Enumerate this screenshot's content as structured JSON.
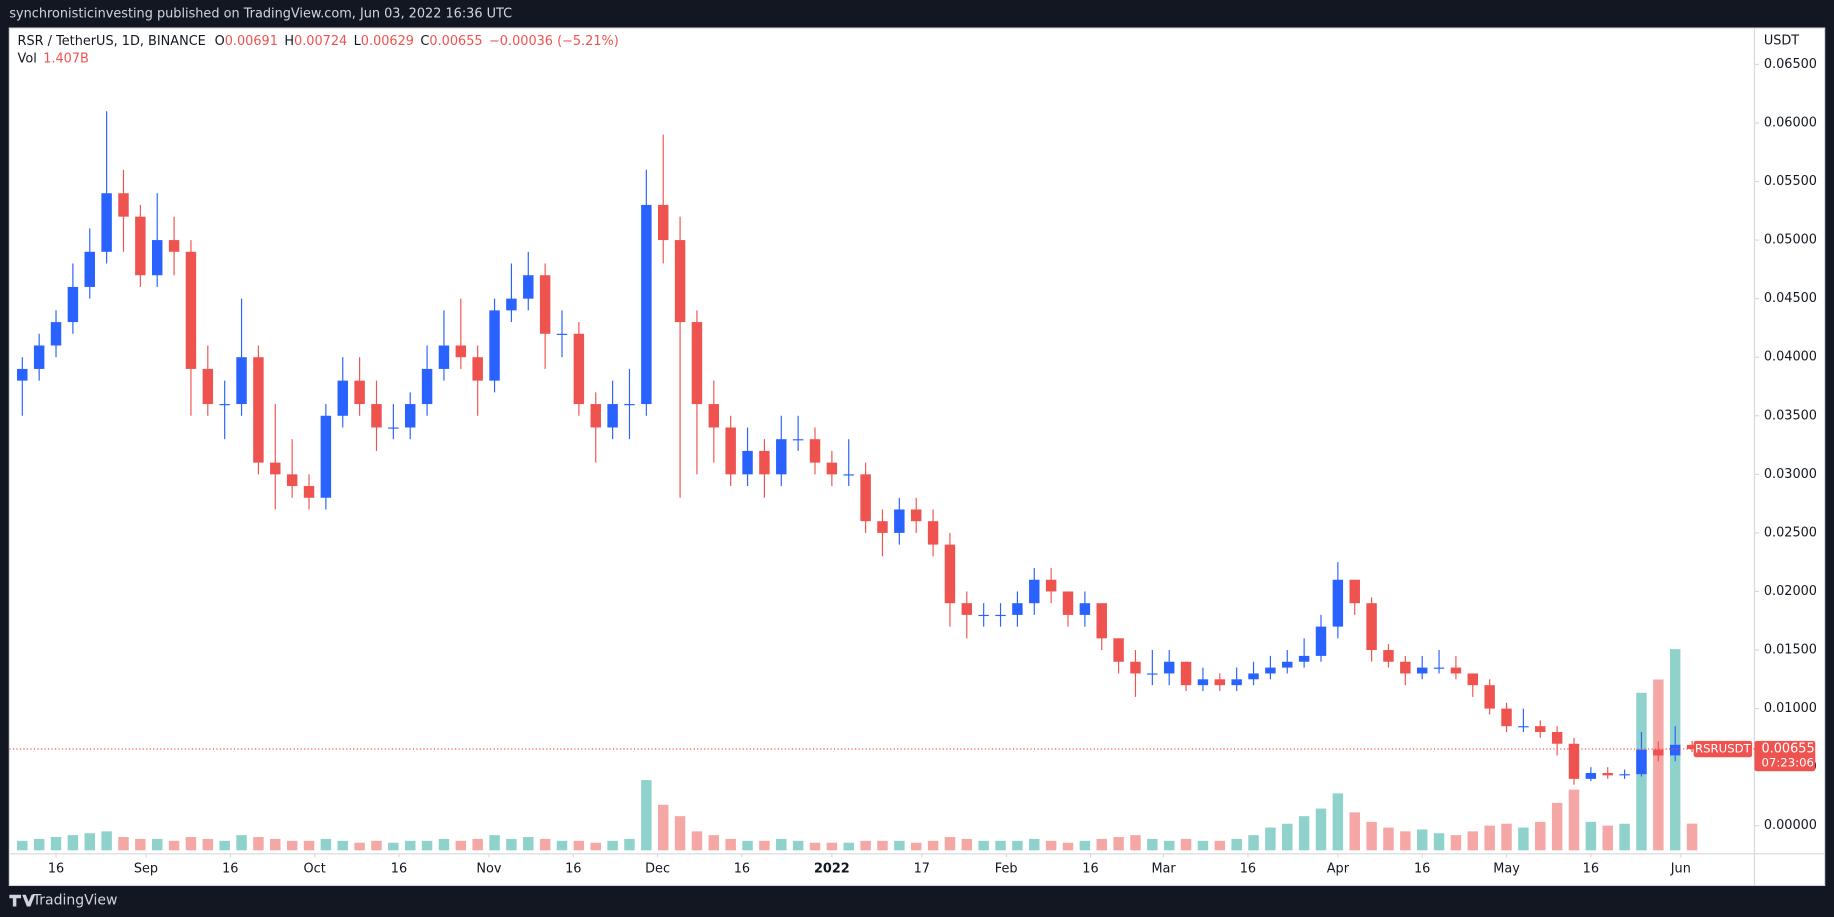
{
  "header": "synchronisticinvesting published on TradingView.com, Jun 03, 2022 16:36 UTC",
  "footer": "TradingView",
  "chart_data": {
    "type": "candlestick",
    "symbol": "RSR / TetherUS, 1D, BINANCE",
    "legend_keys": [
      "O",
      "H",
      "L",
      "C"
    ],
    "change": "−0.00036 (−5.21%)",
    "volume_name": "Vol",
    "last_volume_label": "1.407B",
    "price_tag_name": "RSRUSDT",
    "countdown": "07:23:06",
    "y_unit": "USDT",
    "up_color": "#2962ff",
    "down_color": "#ef5350",
    "volume_up_color": "#8fd1cb",
    "volume_down_color": "#f5a7a5",
    "xlim": [
      6.7,
      317.1
    ],
    "xticks": [
      {
        "value": 15,
        "label": "16"
      },
      {
        "value": 31,
        "label": "Sep"
      },
      {
        "value": 46,
        "label": "16"
      },
      {
        "value": 61,
        "label": "Oct"
      },
      {
        "value": 76,
        "label": "16"
      },
      {
        "value": 92,
        "label": "Nov"
      },
      {
        "value": 107,
        "label": "16"
      },
      {
        "value": 122,
        "label": "Dec"
      },
      {
        "value": 137,
        "label": "16"
      },
      {
        "value": 153,
        "label": "2022"
      },
      {
        "value": 169,
        "label": "17"
      },
      {
        "value": 184,
        "label": "Feb"
      },
      {
        "value": 199,
        "label": "16"
      },
      {
        "value": 212,
        "label": "Mar"
      },
      {
        "value": 227,
        "label": "16"
      },
      {
        "value": 243,
        "label": "Apr"
      },
      {
        "value": 258,
        "label": "16"
      },
      {
        "value": 273,
        "label": "May"
      },
      {
        "value": 288,
        "label": "16"
      },
      {
        "value": 304,
        "label": "Jun"
      }
    ],
    "ylim": [
      -0.0024,
      0.0681
    ],
    "yticks": [
      {
        "value": 0,
        "label": "0.00000"
      },
      {
        "value": 0.005,
        "label": "0.00500"
      },
      {
        "value": 0.01,
        "label": "0.01000"
      },
      {
        "value": 0.015,
        "label": "0.01500"
      },
      {
        "value": 0.02,
        "label": "0.02000"
      },
      {
        "value": 0.025,
        "label": "0.02500"
      },
      {
        "value": 0.03,
        "label": "0.03000"
      },
      {
        "value": 0.035,
        "label": "0.03500"
      },
      {
        "value": 0.04,
        "label": "0.04000"
      },
      {
        "value": 0.045,
        "label": "0.04500"
      },
      {
        "value": 0.05,
        "label": "0.05000"
      },
      {
        "value": 0.055,
        "label": "0.05500"
      },
      {
        "value": 0.06,
        "label": "0.06000"
      },
      {
        "value": 0.065,
        "label": "0.06500"
      }
    ],
    "x": [
      9,
      12,
      15,
      18,
      21,
      24,
      27,
      30,
      33,
      36,
      39,
      42,
      45,
      48,
      51,
      54,
      57,
      60,
      63,
      66,
      69,
      72,
      75,
      78,
      81,
      84,
      87,
      90,
      93,
      96,
      99,
      102,
      105,
      108,
      111,
      114,
      117,
      120,
      123,
      126,
      129,
      132,
      135,
      138,
      141,
      144,
      147,
      150,
      153,
      156,
      159,
      162,
      165,
      168,
      171,
      174,
      177,
      180,
      183,
      186,
      189,
      192,
      195,
      198,
      201,
      204,
      207,
      210,
      213,
      216,
      219,
      222,
      225,
      228,
      231,
      234,
      237,
      240,
      243,
      246,
      249,
      252,
      255,
      258,
      261,
      264,
      267,
      270,
      273,
      276,
      279,
      282,
      285,
      288,
      291,
      294,
      297,
      300,
      303,
      306
    ],
    "open": [
      0.038,
      0.039,
      0.041,
      0.043,
      0.046,
      0.049,
      0.054,
      0.052,
      0.047,
      0.05,
      0.049,
      0.039,
      0.036,
      0.036,
      0.04,
      0.031,
      0.03,
      0.029,
      0.028,
      0.035,
      0.038,
      0.036,
      0.034,
      0.034,
      0.036,
      0.039,
      0.041,
      0.04,
      0.038,
      0.044,
      0.045,
      0.047,
      0.042,
      0.042,
      0.036,
      0.034,
      0.036,
      0.036,
      0.053,
      0.05,
      0.043,
      0.036,
      0.034,
      0.03,
      0.032,
      0.03,
      0.033,
      0.033,
      0.031,
      0.03,
      0.03,
      0.026,
      0.025,
      0.027,
      0.026,
      0.024,
      0.019,
      0.018,
      0.018,
      0.018,
      0.019,
      0.021,
      0.02,
      0.018,
      0.019,
      0.016,
      0.014,
      0.013,
      0.013,
      0.014,
      0.012,
      0.0125,
      0.012,
      0.0125,
      0.013,
      0.0135,
      0.014,
      0.0145,
      0.017,
      0.021,
      0.019,
      0.015,
      0.014,
      0.013,
      0.0135,
      0.0135,
      0.013,
      0.012,
      0.01,
      0.0085,
      0.0085,
      0.008,
      0.007,
      0.004,
      0.0045,
      0.0043,
      0.0044,
      0.0065,
      0.006,
      0.00691
    ],
    "high": [
      0.04,
      0.042,
      0.044,
      0.048,
      0.051,
      0.061,
      0.056,
      0.053,
      0.054,
      0.052,
      0.05,
      0.041,
      0.038,
      0.045,
      0.041,
      0.036,
      0.033,
      0.03,
      0.036,
      0.04,
      0.04,
      0.038,
      0.036,
      0.037,
      0.041,
      0.044,
      0.045,
      0.041,
      0.045,
      0.048,
      0.049,
      0.048,
      0.044,
      0.043,
      0.037,
      0.038,
      0.039,
      0.056,
      0.059,
      0.052,
      0.044,
      0.038,
      0.035,
      0.034,
      0.033,
      0.035,
      0.035,
      0.034,
      0.032,
      0.033,
      0.031,
      0.027,
      0.028,
      0.028,
      0.027,
      0.025,
      0.02,
      0.019,
      0.019,
      0.02,
      0.022,
      0.022,
      0.02,
      0.02,
      0.019,
      0.016,
      0.015,
      0.015,
      0.015,
      0.014,
      0.0135,
      0.013,
      0.0135,
      0.014,
      0.0145,
      0.015,
      0.016,
      0.018,
      0.0225,
      0.021,
      0.0195,
      0.0155,
      0.0145,
      0.0145,
      0.015,
      0.0145,
      0.013,
      0.0125,
      0.0105,
      0.01,
      0.009,
      0.0085,
      0.0075,
      0.005,
      0.005,
      0.0048,
      0.008,
      0.0072,
      0.0085,
      0.00724
    ],
    "low": [
      0.035,
      0.038,
      0.04,
      0.042,
      0.045,
      0.048,
      0.049,
      0.046,
      0.046,
      0.047,
      0.035,
      0.035,
      0.033,
      0.035,
      0.03,
      0.027,
      0.028,
      0.027,
      0.027,
      0.034,
      0.035,
      0.032,
      0.033,
      0.033,
      0.035,
      0.038,
      0.039,
      0.035,
      0.037,
      0.043,
      0.044,
      0.039,
      0.04,
      0.035,
      0.031,
      0.033,
      0.033,
      0.035,
      0.048,
      0.028,
      0.03,
      0.031,
      0.029,
      0.029,
      0.028,
      0.029,
      0.032,
      0.03,
      0.029,
      0.029,
      0.025,
      0.023,
      0.024,
      0.025,
      0.023,
      0.017,
      0.016,
      0.017,
      0.017,
      0.017,
      0.018,
      0.019,
      0.017,
      0.017,
      0.015,
      0.013,
      0.011,
      0.012,
      0.012,
      0.0115,
      0.0115,
      0.0115,
      0.0115,
      0.012,
      0.0125,
      0.013,
      0.0135,
      0.014,
      0.016,
      0.018,
      0.014,
      0.0135,
      0.012,
      0.0125,
      0.013,
      0.0125,
      0.011,
      0.0095,
      0.008,
      0.008,
      0.0075,
      0.006,
      0.0035,
      0.0038,
      0.004,
      0.004,
      0.0042,
      0.0055,
      0.0055,
      0.00629
    ],
    "close": [
      0.039,
      0.041,
      0.043,
      0.046,
      0.049,
      0.054,
      0.052,
      0.047,
      0.05,
      0.049,
      0.039,
      0.036,
      0.036,
      0.04,
      0.031,
      0.03,
      0.029,
      0.028,
      0.035,
      0.038,
      0.036,
      0.034,
      0.034,
      0.036,
      0.039,
      0.041,
      0.04,
      0.038,
      0.044,
      0.045,
      0.047,
      0.042,
      0.042,
      0.036,
      0.034,
      0.036,
      0.036,
      0.053,
      0.05,
      0.043,
      0.036,
      0.034,
      0.03,
      0.032,
      0.03,
      0.033,
      0.033,
      0.031,
      0.03,
      0.03,
      0.026,
      0.025,
      0.027,
      0.026,
      0.024,
      0.019,
      0.018,
      0.018,
      0.018,
      0.019,
      0.021,
      0.02,
      0.018,
      0.019,
      0.016,
      0.014,
      0.013,
      0.013,
      0.014,
      0.012,
      0.0125,
      0.012,
      0.0125,
      0.013,
      0.0135,
      0.014,
      0.0145,
      0.017,
      0.021,
      0.019,
      0.015,
      0.014,
      0.013,
      0.0135,
      0.0135,
      0.013,
      0.012,
      0.01,
      0.0085,
      0.0085,
      0.008,
      0.007,
      0.004,
      0.0045,
      0.0043,
      0.0044,
      0.0065,
      0.006,
      0.00691,
      0.00655
    ],
    "volume": [
      0.5,
      0.6,
      0.7,
      0.8,
      0.9,
      1.0,
      0.7,
      0.6,
      0.6,
      0.5,
      0.7,
      0.6,
      0.5,
      0.8,
      0.7,
      0.6,
      0.5,
      0.5,
      0.6,
      0.5,
      0.4,
      0.5,
      0.4,
      0.5,
      0.5,
      0.6,
      0.5,
      0.6,
      0.8,
      0.6,
      0.7,
      0.6,
      0.5,
      0.5,
      0.4,
      0.5,
      0.6,
      3.7,
      2.4,
      1.8,
      1.0,
      0.8,
      0.6,
      0.5,
      0.5,
      0.6,
      0.5,
      0.4,
      0.4,
      0.4,
      0.5,
      0.5,
      0.5,
      0.4,
      0.5,
      0.7,
      0.6,
      0.5,
      0.5,
      0.5,
      0.6,
      0.5,
      0.4,
      0.5,
      0.6,
      0.7,
      0.8,
      0.6,
      0.5,
      0.6,
      0.5,
      0.5,
      0.6,
      0.8,
      1.2,
      1.4,
      1.8,
      2.2,
      3.0,
      2.0,
      1.5,
      1.2,
      1.0,
      1.1,
      0.9,
      0.8,
      1.0,
      1.3,
      1.4,
      1.2,
      1.5,
      2.5,
      3.2,
      1.5,
      1.3,
      1.4,
      8.3,
      9.0,
      10.6,
      1.407
    ]
  }
}
